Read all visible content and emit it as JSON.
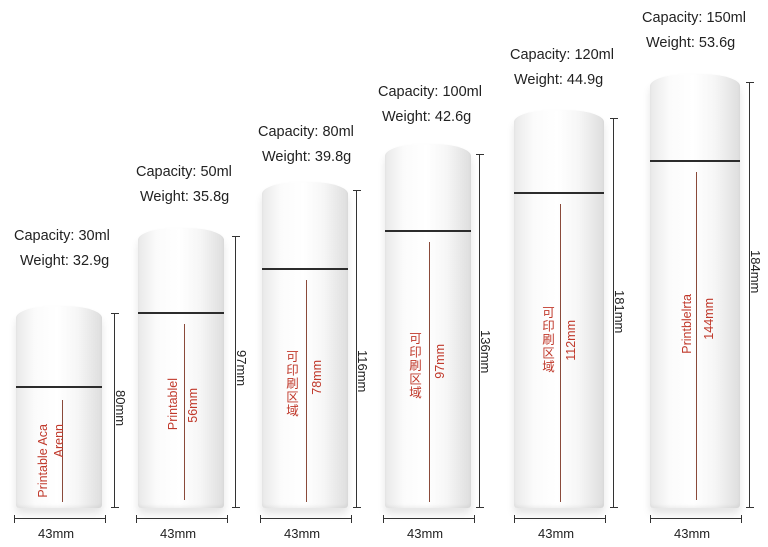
{
  "bottles": [
    {
      "capacity": "Capacity: 30ml",
      "weight": "Weight: 32.9g",
      "height": "80mm",
      "width": "43mm",
      "area_lines": [
        "Arenn",
        "Printable Aca"
      ],
      "area_size": ""
    },
    {
      "capacity": "Capacity: 50ml",
      "weight": "Weight: 35.8g",
      "height": "97mm",
      "width": "43mm",
      "area_lines": [
        "56mm",
        "Printablel"
      ],
      "area_size": ""
    },
    {
      "capacity": "Capacity: 80ml",
      "weight": "Weight: 39.8g",
      "height": "116mm",
      "width": "43mm",
      "area_lines": [
        "可印刷区域"
      ],
      "area_size": "78mm"
    },
    {
      "capacity": "Capacity: 100ml",
      "weight": "Weight: 42.6g",
      "height": "136mm",
      "width": "43mm",
      "area_lines": [
        "可印刷区域"
      ],
      "area_size": "97mm"
    },
    {
      "capacity": "Capacity: 120ml",
      "weight": "Weight: 44.9g",
      "height": "181mm",
      "width": "43mm",
      "area_lines": [
        "可印刷区域"
      ],
      "area_size": "112mm"
    },
    {
      "capacity": "Capacity: 150ml",
      "weight": "Weight: 53.6g",
      "height": "184mm",
      "width": "43mm",
      "area_lines": [
        "Printblelrta"
      ],
      "area_size": "144mm"
    }
  ],
  "colors": {
    "print_area_text": "#c0392b",
    "seam": "#2c2c2c"
  }
}
